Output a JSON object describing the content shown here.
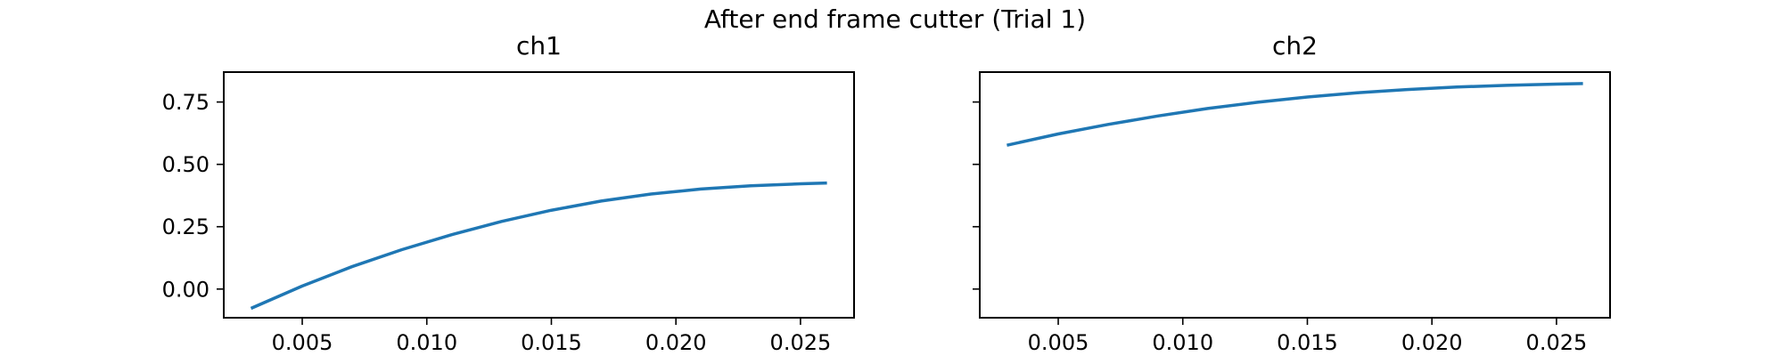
{
  "figure": {
    "title": "After end frame cutter (Trial 1)"
  },
  "chart_data": [
    {
      "type": "line",
      "title": "ch1",
      "xlabel": "",
      "ylabel": "",
      "xlim": [
        0.00185,
        0.02715
      ],
      "ylim": [
        -0.115,
        0.87
      ],
      "xticks": [
        0.005,
        0.01,
        0.015,
        0.02,
        0.025
      ],
      "xtick_labels": [
        "0.005",
        "0.010",
        "0.015",
        "0.020",
        "0.025"
      ],
      "yticks": [
        0.0,
        0.25,
        0.5,
        0.75
      ],
      "ytick_labels": [
        "0.00",
        "0.25",
        "0.50",
        "0.75"
      ],
      "show_ytick_labels": true,
      "grid": false,
      "series": [
        {
          "color": "#1f77b4",
          "x": [
            0.003,
            0.005,
            0.007,
            0.009,
            0.011,
            0.013,
            0.015,
            0.017,
            0.019,
            0.021,
            0.023,
            0.025,
            0.026
          ],
          "y": [
            -0.075,
            0.012,
            0.09,
            0.158,
            0.218,
            0.271,
            0.316,
            0.353,
            0.381,
            0.401,
            0.414,
            0.422,
            0.425
          ]
        }
      ]
    },
    {
      "type": "line",
      "title": "ch2",
      "xlabel": "",
      "ylabel": "",
      "xlim": [
        0.00185,
        0.02715
      ],
      "ylim": [
        -0.115,
        0.87
      ],
      "xticks": [
        0.005,
        0.01,
        0.015,
        0.02,
        0.025
      ],
      "xtick_labels": [
        "0.005",
        "0.010",
        "0.015",
        "0.020",
        "0.025"
      ],
      "yticks": [
        0.0,
        0.25,
        0.5,
        0.75
      ],
      "ytick_labels": [
        "0.00",
        "0.25",
        "0.50",
        "0.75"
      ],
      "show_ytick_labels": false,
      "grid": false,
      "series": [
        {
          "color": "#1f77b4",
          "x": [
            0.003,
            0.005,
            0.007,
            0.009,
            0.011,
            0.013,
            0.015,
            0.017,
            0.019,
            0.021,
            0.023,
            0.025,
            0.026
          ],
          "y": [
            0.578,
            0.622,
            0.66,
            0.694,
            0.724,
            0.749,
            0.77,
            0.787,
            0.8,
            0.81,
            0.817,
            0.822,
            0.824
          ]
        }
      ]
    }
  ]
}
